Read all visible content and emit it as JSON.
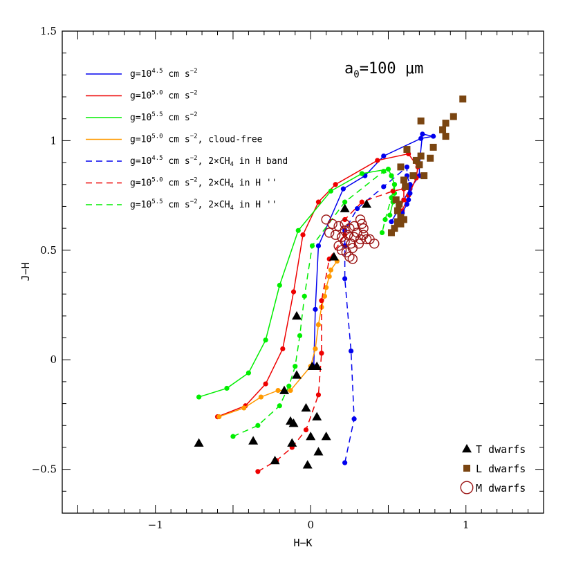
{
  "chart_data": {
    "type": "scatter",
    "xlabel": "H−K",
    "ylabel": "J−H",
    "xlim": [
      -1.6,
      1.5
    ],
    "ylim": [
      -0.7,
      1.5
    ],
    "x_ticks": [
      -1,
      0,
      1
    ],
    "y_ticks": [
      -0.5,
      0,
      0.5,
      1,
      1.5
    ],
    "x_tick_labels": [
      "−1",
      "0",
      "1"
    ],
    "y_tick_labels": [
      "−0.5",
      "0",
      "0.5",
      "1",
      "1.5"
    ],
    "annotation": {
      "base": "a",
      "sub": "0",
      "rest": "=100 μm"
    },
    "colors": {
      "blue": "#0000ee",
      "red": "#ee0000",
      "green": "#00ee00",
      "orange": "#ff9900",
      "brown": "#7a4511",
      "darkred": "#991111",
      "black": "#000000"
    },
    "series": [
      {
        "name": "g=10^{4.5} cm s^{-2}",
        "legend": {
          "pre": "g=10",
          "exp": "4.5",
          "post": " cm s",
          "exp2": "−2",
          "tail": ""
        },
        "color": "#0000ee",
        "dash": false,
        "points": [
          [
            0.02,
            -0.03
          ],
          [
            0.03,
            0.23
          ],
          [
            0.05,
            0.52
          ],
          [
            0.21,
            0.78
          ],
          [
            0.35,
            0.84
          ],
          [
            0.47,
            0.93
          ],
          [
            0.71,
            1.01
          ],
          [
            0.79,
            1.02
          ],
          [
            0.72,
            1.03
          ],
          [
            0.7,
            0.89
          ],
          [
            0.7,
            0.84
          ],
          [
            0.64,
            0.78
          ],
          [
            0.6,
            0.73
          ],
          [
            0.52,
            0.63
          ]
        ]
      },
      {
        "name": "g=10^{5.0} cm s^{-2}",
        "legend": {
          "pre": "g=10",
          "exp": "5.0",
          "post": " cm s",
          "exp2": "−2",
          "tail": ""
        },
        "color": "#ee0000",
        "dash": false,
        "points": [
          [
            -0.6,
            -0.26
          ],
          [
            -0.42,
            -0.21
          ],
          [
            -0.29,
            -0.11
          ],
          [
            -0.18,
            0.05
          ],
          [
            -0.11,
            0.31
          ],
          [
            -0.05,
            0.57
          ],
          [
            0.05,
            0.72
          ],
          [
            0.16,
            0.8
          ],
          [
            0.43,
            0.91
          ],
          [
            0.63,
            0.94
          ],
          [
            0.69,
            0.88
          ],
          [
            0.68,
            0.83
          ],
          [
            0.63,
            0.75
          ],
          [
            0.59,
            0.68
          ],
          [
            0.53,
            0.59
          ]
        ]
      },
      {
        "name": "g=10^{5.5} cm s^{-2}",
        "legend": {
          "pre": "g=10",
          "exp": "5.5",
          "post": " cm s",
          "exp2": "−2",
          "tail": ""
        },
        "color": "#00ee00",
        "dash": false,
        "points": [
          [
            -0.72,
            -0.17
          ],
          [
            -0.54,
            -0.13
          ],
          [
            -0.4,
            -0.06
          ],
          [
            -0.29,
            0.09
          ],
          [
            -0.2,
            0.34
          ],
          [
            -0.08,
            0.59
          ],
          [
            0.13,
            0.77
          ],
          [
            0.33,
            0.85
          ],
          [
            0.5,
            0.87
          ],
          [
            0.52,
            0.84
          ],
          [
            0.54,
            0.8
          ],
          [
            0.54,
            0.76
          ],
          [
            0.53,
            0.72
          ],
          [
            0.51,
            0.66
          ]
        ]
      },
      {
        "name": "g=10^{5.0} cm s^{-2}, cloud-free",
        "legend": {
          "pre": "g=10",
          "exp": "5.0",
          "post": " cm s",
          "exp2": "−2",
          "tail": ", cloud-free"
        },
        "color": "#ff9900",
        "dash": false,
        "points": [
          [
            -0.59,
            -0.26
          ],
          [
            -0.43,
            -0.22
          ],
          [
            -0.32,
            -0.17
          ],
          [
            -0.21,
            -0.14
          ],
          [
            -0.13,
            -0.14
          ],
          [
            0.0,
            -0.03
          ],
          [
            0.03,
            0.05
          ],
          [
            0.05,
            0.16
          ],
          [
            0.07,
            0.24
          ],
          [
            0.09,
            0.29
          ],
          [
            0.1,
            0.33
          ],
          [
            0.12,
            0.38
          ],
          [
            0.13,
            0.41
          ],
          [
            0.17,
            0.45
          ]
        ]
      },
      {
        "name": "g=10^{4.5} cm s^{-2}, 2×CH_4 in H band",
        "legend": {
          "pre": "g=10",
          "exp": "4.5",
          "post": " cm s",
          "exp2": "−2",
          "tail": ", 2×CH",
          "sub": "4",
          "tail2": " in H band"
        },
        "color": "#0000ee",
        "dash": true,
        "points": [
          [
            0.22,
            -0.47
          ],
          [
            0.28,
            -0.27
          ],
          [
            0.26,
            0.04
          ],
          [
            0.22,
            0.37
          ],
          [
            0.22,
            0.52
          ],
          [
            0.22,
            0.59
          ],
          [
            0.3,
            0.69
          ],
          [
            0.47,
            0.79
          ],
          [
            0.62,
            0.88
          ],
          [
            0.62,
            0.84
          ],
          [
            0.64,
            0.8
          ],
          [
            0.64,
            0.76
          ],
          [
            0.63,
            0.73
          ],
          [
            0.62,
            0.71
          ],
          [
            0.59,
            0.67
          ]
        ]
      },
      {
        "name": "g=10^{5.0} cm s^{-2}, 2×CH_4 in H ''",
        "legend": {
          "pre": "g=10",
          "exp": "5.0",
          "post": " cm s",
          "exp2": "−2",
          "tail": ", 2×CH",
          "sub": "4",
          "tail2": " in H ''"
        },
        "color": "#ee0000",
        "dash": true,
        "points": [
          [
            -0.34,
            -0.51
          ],
          [
            -0.22,
            -0.46
          ],
          [
            -0.12,
            -0.4
          ],
          [
            -0.03,
            -0.32
          ],
          [
            0.05,
            -0.16
          ],
          [
            0.07,
            0.03
          ],
          [
            0.07,
            0.27
          ],
          [
            0.12,
            0.46
          ],
          [
            0.22,
            0.57
          ],
          [
            0.22,
            0.64
          ],
          [
            0.33,
            0.72
          ],
          [
            0.53,
            0.77
          ],
          [
            0.6,
            0.78
          ],
          [
            0.6,
            0.73
          ],
          [
            0.57,
            0.68
          ],
          [
            0.56,
            0.62
          ]
        ]
      },
      {
        "name": "g=10^{5.5} cm s^{-2}, 2×CH_4 in H ''",
        "legend": {
          "pre": "g=10",
          "exp": "5.5",
          "post": " cm s",
          "exp2": "−2",
          "tail": ", 2×CH",
          "sub": "4",
          "tail2": " in H ''"
        },
        "color": "#00ee00",
        "dash": true,
        "points": [
          [
            -0.5,
            -0.35
          ],
          [
            -0.34,
            -0.3
          ],
          [
            -0.2,
            -0.21
          ],
          [
            -0.14,
            -0.12
          ],
          [
            -0.1,
            -0.03
          ],
          [
            -0.07,
            0.11
          ],
          [
            -0.04,
            0.29
          ],
          [
            0.01,
            0.52
          ],
          [
            0.22,
            0.72
          ],
          [
            0.47,
            0.86
          ],
          [
            0.52,
            0.84
          ],
          [
            0.54,
            0.8
          ],
          [
            0.52,
            0.74
          ],
          [
            0.48,
            0.64
          ],
          [
            0.46,
            0.58
          ]
        ]
      }
    ],
    "observations": [
      {
        "name": "T dwarfs",
        "marker": "triangle",
        "color": "#000000",
        "points": [
          [
            -0.72,
            -0.38
          ],
          [
            -0.37,
            -0.37
          ],
          [
            -0.23,
            -0.46
          ],
          [
            -0.17,
            -0.14
          ],
          [
            -0.13,
            -0.28
          ],
          [
            -0.11,
            -0.29
          ],
          [
            -0.12,
            -0.38
          ],
          [
            -0.09,
            -0.07
          ],
          [
            -0.03,
            -0.22
          ],
          [
            -0.02,
            -0.48
          ],
          [
            0.0,
            -0.35
          ],
          [
            0.04,
            -0.26
          ],
          [
            0.05,
            -0.42
          ],
          [
            0.1,
            -0.35
          ],
          [
            0.01,
            -0.03
          ],
          [
            0.04,
            -0.03
          ],
          [
            -0.09,
            0.2
          ],
          [
            0.15,
            0.47
          ],
          [
            0.22,
            0.69
          ],
          [
            0.36,
            0.71
          ]
        ]
      },
      {
        "name": "L dwarfs",
        "marker": "square",
        "color": "#7a4511",
        "points": [
          [
            0.98,
            1.19
          ],
          [
            0.92,
            1.11
          ],
          [
            0.87,
            1.08
          ],
          [
            0.85,
            1.05
          ],
          [
            0.71,
            1.09
          ],
          [
            0.87,
            1.02
          ],
          [
            0.79,
            0.97
          ],
          [
            0.77,
            0.92
          ],
          [
            0.73,
            0.84
          ],
          [
            0.7,
            0.89
          ],
          [
            0.71,
            0.93
          ],
          [
            0.68,
            0.91
          ],
          [
            0.62,
            0.96
          ],
          [
            0.66,
            0.84
          ],
          [
            0.58,
            0.88
          ],
          [
            0.6,
            0.82
          ],
          [
            0.61,
            0.79
          ],
          [
            0.55,
            0.73
          ],
          [
            0.57,
            0.71
          ],
          [
            0.56,
            0.68
          ],
          [
            0.58,
            0.65
          ],
          [
            0.56,
            0.63
          ],
          [
            0.58,
            0.62
          ],
          [
            0.54,
            0.6
          ],
          [
            0.52,
            0.58
          ],
          [
            0.6,
            0.64
          ]
        ]
      },
      {
        "name": "M dwarfs",
        "marker": "circle",
        "color": "#991111",
        "points": [
          [
            0.1,
            0.64
          ],
          [
            0.14,
            0.62
          ],
          [
            0.18,
            0.61
          ],
          [
            0.22,
            0.62
          ],
          [
            0.25,
            0.6
          ],
          [
            0.28,
            0.61
          ],
          [
            0.32,
            0.64
          ],
          [
            0.33,
            0.62
          ],
          [
            0.3,
            0.58
          ],
          [
            0.34,
            0.57
          ],
          [
            0.36,
            0.55
          ],
          [
            0.32,
            0.55
          ],
          [
            0.28,
            0.56
          ],
          [
            0.24,
            0.57
          ],
          [
            0.2,
            0.56
          ],
          [
            0.16,
            0.57
          ],
          [
            0.22,
            0.54
          ],
          [
            0.26,
            0.53
          ],
          [
            0.18,
            0.52
          ],
          [
            0.2,
            0.5
          ],
          [
            0.23,
            0.49
          ],
          [
            0.27,
            0.51
          ],
          [
            0.31,
            0.53
          ],
          [
            0.25,
            0.47
          ],
          [
            0.27,
            0.46
          ],
          [
            0.41,
            0.53
          ],
          [
            0.38,
            0.55
          ],
          [
            0.12,
            0.58
          ],
          [
            0.34,
            0.6
          ],
          [
            0.22,
            0.59
          ]
        ]
      }
    ]
  }
}
